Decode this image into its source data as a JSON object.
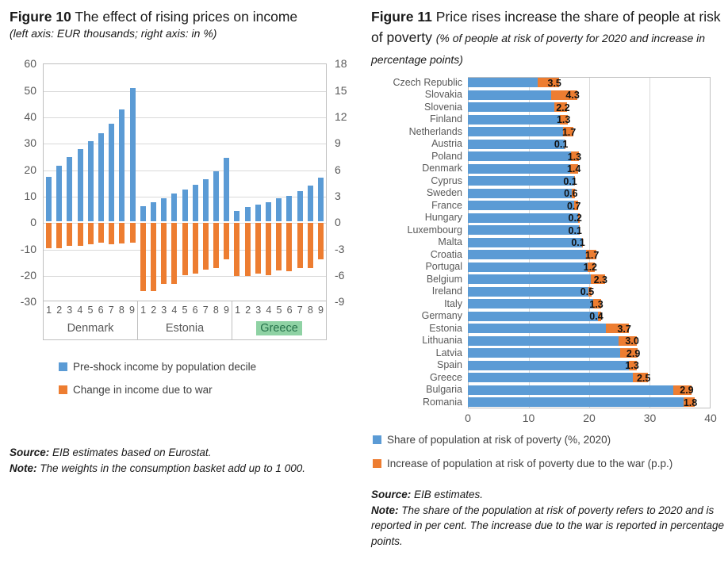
{
  "colors": {
    "figure_number_blue": "#4a90d2",
    "bar_blue": "#5b9bd5",
    "bar_orange": "#ed7d31",
    "axis_text_gray": "#595959",
    "gridline_gray": "#d9d9d9",
    "plot_border_gray": "#bfbfbf",
    "greece_highlight_bg": "#8fd2a4",
    "greece_highlight_text": "#26724a"
  },
  "figure10": {
    "label": "Figure 10",
    "title": " The effect of rising prices on income",
    "subtitle": "(left axis: EUR thousands; right axis: in %)",
    "source_label": "Source:",
    "source_text": " EIB estimates based on Eurostat.",
    "note_label": "Note:",
    "note_text": " The weights in the consumption basket add up to 1 000.",
    "chart_data": {
      "type": "bar",
      "left_axis_ticks": [
        60,
        50,
        40,
        30,
        20,
        10,
        0,
        -10,
        -20,
        -30
      ],
      "right_axis_ticks": [
        18,
        15,
        12,
        9,
        6,
        3,
        0,
        -3,
        -6,
        -9
      ],
      "left_ylim": [
        -30,
        60
      ],
      "right_ylim": [
        -9,
        18
      ],
      "decile_labels": [
        "1",
        "2",
        "3",
        "4",
        "5",
        "6",
        "7",
        "8",
        "9"
      ],
      "highlighted_country": "Greece",
      "groups": [
        {
          "country": "Denmark",
          "pre_shock_income_eur_thousands": [
            17.0,
            21.0,
            24.5,
            27.5,
            30.5,
            33.5,
            37.0,
            42.5,
            50.5
          ],
          "change_in_income_pct": [
            -2.9,
            -2.9,
            -2.6,
            -2.6,
            -2.4,
            -2.2,
            -2.4,
            -2.3,
            -2.2
          ]
        },
        {
          "country": "Estonia",
          "pre_shock_income_eur_thousands": [
            5.7,
            7.2,
            8.9,
            10.5,
            12.1,
            13.8,
            16.0,
            19.0,
            24.0
          ],
          "change_in_income_pct": [
            -7.7,
            -7.7,
            -6.9,
            -6.9,
            -5.9,
            -5.7,
            -5.3,
            -5.1,
            -4.1
          ]
        },
        {
          "country": "Greece",
          "pre_shock_income_eur_thousands": [
            4.1,
            5.5,
            6.5,
            7.4,
            8.7,
            9.6,
            11.6,
            13.5,
            16.5
          ],
          "change_in_income_pct": [
            -6.0,
            -6.0,
            -5.7,
            -5.9,
            -5.4,
            -5.5,
            -5.1,
            -5.1,
            -4.1
          ]
        }
      ],
      "legend": [
        {
          "label": "Pre-shock income by population decile",
          "color": "#5b9bd5"
        },
        {
          "label": "Change in income due to war",
          "color": "#ed7d31"
        }
      ]
    }
  },
  "figure11": {
    "label": "Figure 11",
    "title": " Price rises increase the share of people at risk of poverty ",
    "subtitle": "(% of people at risk of poverty for 2020 and increase in percentage points)",
    "source_label": "Source:",
    "source_text": " EIB estimates.",
    "note_label": "Note:",
    "note_text": " The share of the population at risk of poverty refers to 2020 and is reported in per cent. The increase due to the war is reported in percentage points.",
    "chart_data": {
      "type": "bar",
      "orientation": "horizontal",
      "stacked": true,
      "xlim": [
        0,
        40
      ],
      "x_axis_ticks": [
        0,
        10,
        20,
        30,
        40
      ],
      "categories": [
        "Czech Republic",
        "Slovakia",
        "Slovenia",
        "Finland",
        "Netherlands",
        "Austria",
        "Poland",
        "Denmark",
        "Cyprus",
        "Sweden",
        "France",
        "Hungary",
        "Luxembourg",
        "Malta",
        "Croatia",
        "Portugal",
        "Belgium",
        "Ireland",
        "Italy",
        "Germany",
        "Estonia",
        "Lithuania",
        "Latvia",
        "Spain",
        "Greece",
        "Bulgaria",
        "Romania"
      ],
      "series": [
        {
          "name": "Share of population at risk of poverty (%, 2020)",
          "color": "#5b9bd5",
          "values": [
            11.5,
            13.7,
            14.2,
            15.2,
            15.7,
            16.0,
            17.0,
            16.8,
            17.5,
            17.1,
            17.5,
            18.2,
            18.3,
            18.8,
            19.5,
            19.7,
            20.3,
            19.9,
            20.6,
            21.5,
            22.8,
            24.8,
            25.1,
            26.5,
            27.2,
            33.9,
            35.6
          ]
        },
        {
          "name": "Increase of population at risk of poverty due to the war (p.p.)",
          "color": "#ed7d31",
          "values": [
            3.5,
            4.3,
            2.2,
            1.3,
            1.7,
            0.1,
            1.3,
            1.4,
            0.1,
            0.6,
            0.7,
            0.2,
            0.1,
            0.1,
            1.7,
            1.2,
            2.3,
            0.5,
            1.3,
            0.4,
            3.7,
            3.0,
            2.9,
            1.3,
            2.5,
            2.9,
            1.8
          ]
        }
      ],
      "data_labels_series": "Increase of population at risk of poverty due to the war (p.p.)",
      "legend": [
        {
          "label": "Share of population at risk of poverty (%, 2020)",
          "color": "#5b9bd5"
        },
        {
          "label": "Increase of population at risk of poverty due to the war (p.p.)",
          "color": "#ed7d31"
        }
      ]
    }
  }
}
